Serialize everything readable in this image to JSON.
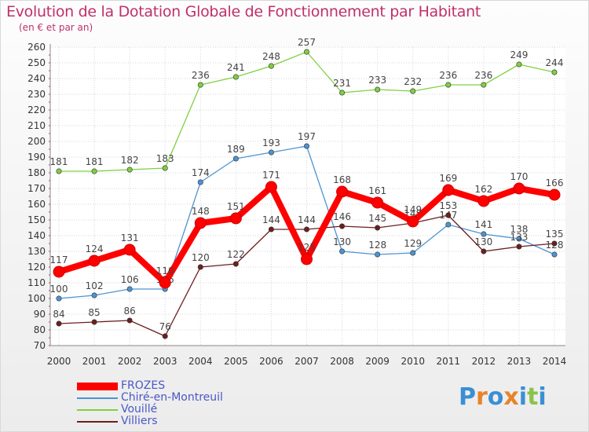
{
  "header": {
    "title": "Evolution de la Dotation Globale de Fonctionnement par Habitant",
    "subtitle": "(en € et par an)"
  },
  "logo": {
    "text": "Proxiti",
    "letters": [
      "P",
      "r",
      "o",
      "x",
      "i",
      "t",
      "i"
    ],
    "colors": [
      "#3a8fd4",
      "#e8832a",
      "#3a8fd4",
      "#e8832a",
      "#3a8fd4",
      "#8bc34a",
      "#3a8fd4"
    ]
  },
  "chart_data": {
    "type": "line",
    "title": "Evolution de la Dotation Globale de Fonctionnement par Habitant",
    "subtitle": "(en € et par an)",
    "xlabel": "",
    "ylabel": "",
    "grid": true,
    "ylim": [
      70,
      260
    ],
    "yticks": [
      70,
      80,
      90,
      100,
      110,
      120,
      130,
      140,
      150,
      160,
      170,
      180,
      190,
      200,
      210,
      220,
      230,
      240,
      250,
      260
    ],
    "categories": [
      "2000",
      "2001",
      "2002",
      "2003",
      "2004",
      "2005",
      "2006",
      "2007",
      "2008",
      "2009",
      "2010",
      "2011",
      "2012",
      "2013",
      "2014"
    ],
    "series": [
      {
        "name": "FROZES",
        "color": "#ff0000",
        "values": [
          117,
          124,
          131,
          110,
          148,
          151,
          171,
          125,
          168,
          161,
          149,
          169,
          162,
          170,
          166
        ]
      },
      {
        "name": "Chiré-en-Montreuil",
        "color": "#4d94d0",
        "values": [
          100,
          102,
          106,
          106,
          174,
          189,
          193,
          197,
          130,
          128,
          129,
          147,
          141,
          138,
          128
        ]
      },
      {
        "name": "Vouillé",
        "color": "#7fd040",
        "values": [
          181,
          181,
          182,
          183,
          236,
          241,
          248,
          257,
          231,
          233,
          232,
          236,
          236,
          249,
          244
        ]
      },
      {
        "name": "Villiers",
        "color": "#6b1f1f",
        "values": [
          84,
          85,
          86,
          76,
          120,
          122,
          144,
          144,
          146,
          145,
          148,
          153,
          130,
          133,
          135
        ]
      }
    ],
    "legend_position": "bottom-left"
  }
}
